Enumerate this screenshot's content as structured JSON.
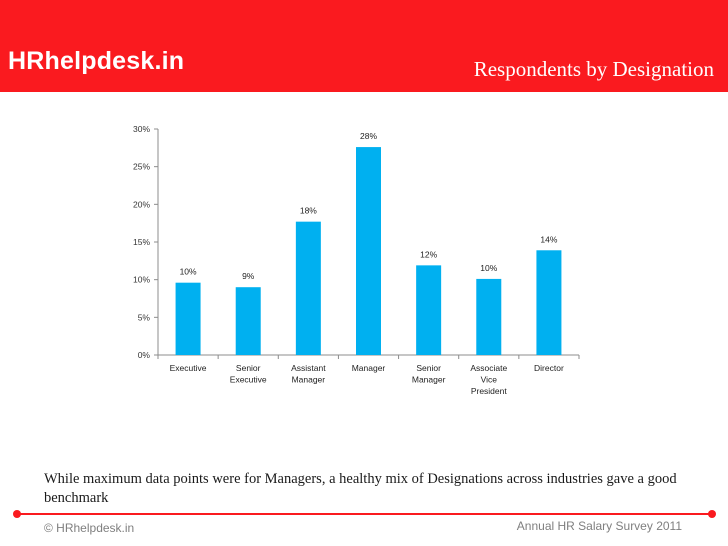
{
  "header": {
    "brand": "HRhelpdesk.in",
    "title": "Respondents by Designation"
  },
  "colors": {
    "header_bg": "#fa1a1f",
    "bar": "#00b0f0",
    "axis": "#8c8c8c"
  },
  "chart_data": {
    "type": "bar",
    "categories": [
      [
        "Executive"
      ],
      [
        "Senior",
        "Executive"
      ],
      [
        "Assistant",
        "Manager"
      ],
      [
        "Manager"
      ],
      [
        "Senior",
        "Manager"
      ],
      [
        "Associate",
        "Vice",
        "President"
      ],
      [
        "Director"
      ]
    ],
    "values": [
      9.6,
      9.0,
      17.7,
      27.6,
      11.9,
      10.1,
      13.9
    ],
    "data_labels": [
      "10%",
      "9%",
      "18%",
      "28%",
      "12%",
      "10%",
      "14%"
    ],
    "ylim": [
      0,
      30
    ],
    "yticks": [
      0,
      5,
      10,
      15,
      20,
      25,
      30
    ],
    "ytick_labels": [
      "0%",
      "5%",
      "10%",
      "15%",
      "20%",
      "25%",
      "30%"
    ],
    "grid": false,
    "legend": "none"
  },
  "caption": "While maximum data points were for Managers, a healthy mix of Designations across industries gave a good benchmark",
  "footer": {
    "left": "© HRhelpdesk.in",
    "right": "Annual HR Salary Survey 2011"
  }
}
